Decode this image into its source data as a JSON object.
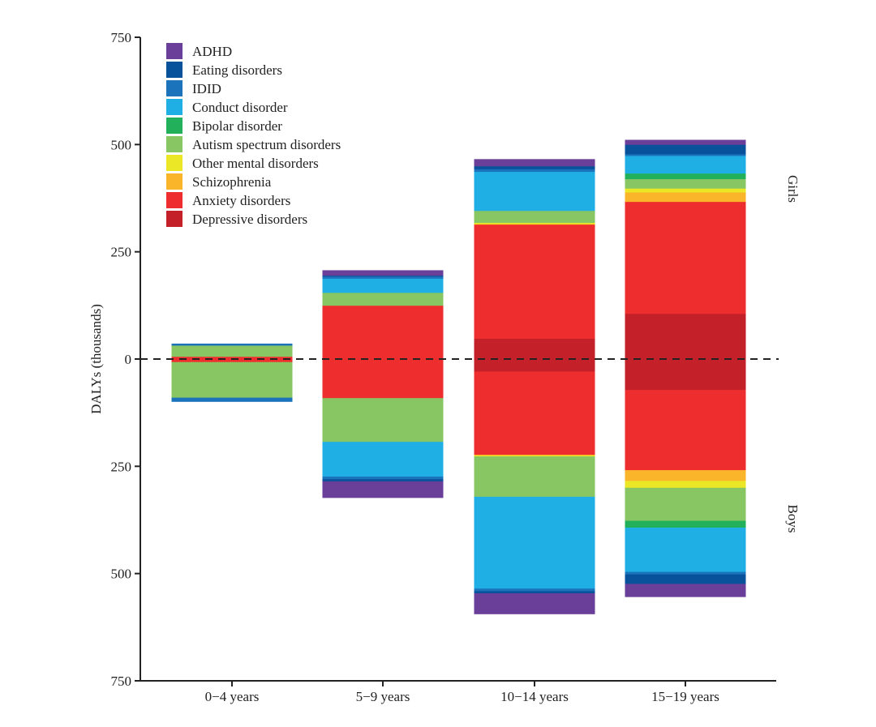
{
  "chart_data": {
    "type": "bar",
    "stacked": true,
    "diverging": true,
    "title": "",
    "xlabel": "",
    "ylabel": "DALYs (thousands)",
    "ylim": [
      -750,
      750
    ],
    "yticks": [
      750,
      500,
      250,
      0,
      -250,
      -500,
      -750
    ],
    "ytick_labels": [
      "750",
      "500",
      "250",
      "0",
      "250",
      "500",
      "750"
    ],
    "side_labels": {
      "top": "Girls",
      "bottom": "Boys"
    },
    "categories": [
      "0−4 years",
      "5−9 years",
      "10−14 years",
      "15−19 years"
    ],
    "legend_position": "top-left",
    "series": [
      {
        "name": "Depressive disorders",
        "color": "#c3202a",
        "girls": [
          0,
          0,
          48,
          106
        ],
        "boys": [
          0,
          0,
          29,
          72
        ]
      },
      {
        "name": "Anxiety disorders",
        "color": "#ee2e2e",
        "girls": [
          6,
          125,
          266,
          261
        ],
        "boys": [
          7,
          91,
          194,
          187
        ]
      },
      {
        "name": "Schizophrenia",
        "color": "#fbb52a",
        "girls": [
          0,
          0,
          1,
          22
        ],
        "boys": [
          0,
          0,
          2,
          25
        ]
      },
      {
        "name": "Other mental disorders",
        "color": "#ece726",
        "girls": [
          0,
          0,
          3,
          9
        ],
        "boys": [
          0,
          0,
          2,
          16
        ]
      },
      {
        "name": "Autism spectrum disorders",
        "color": "#88c663",
        "girls": [
          26,
          30,
          28,
          22
        ],
        "boys": [
          83,
          102,
          94,
          77
        ]
      },
      {
        "name": "Bipolar disorder",
        "color": "#23b05b",
        "girls": [
          0,
          0,
          0,
          13
        ],
        "boys": [
          0,
          0,
          0,
          16
        ]
      },
      {
        "name": "Conduct disorder",
        "color": "#20afe5",
        "girls": [
          0,
          33,
          91,
          41
        ],
        "boys": [
          0,
          81,
          214,
          103
        ]
      },
      {
        "name": "IDID",
        "color": "#1b74bb",
        "girls": [
          4,
          5,
          6,
          4
        ],
        "boys": [
          9,
          6,
          6,
          6
        ]
      },
      {
        "name": "Eating disorders",
        "color": "#08529c",
        "girls": [
          0,
          2,
          7,
          22
        ],
        "boys": [
          0,
          5,
          5,
          22
        ]
      },
      {
        "name": "ADHD",
        "color": "#693f99",
        "girls": [
          0,
          12,
          16,
          11
        ],
        "boys": [
          0,
          38,
          48,
          30
        ]
      }
    ],
    "legend_order": [
      "ADHD",
      "Eating disorders",
      "IDID",
      "Conduct disorder",
      "Bipolar disorder",
      "Autism spectrum disorders",
      "Other mental disorders",
      "Schizophrenia",
      "Anxiety disorders",
      "Depressive disorders"
    ]
  }
}
